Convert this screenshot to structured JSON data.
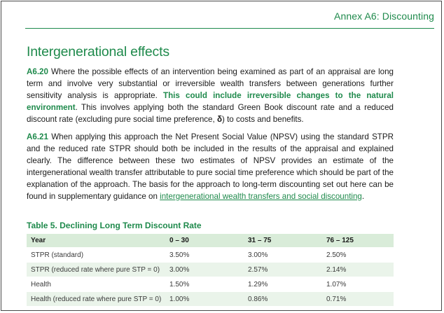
{
  "header": {
    "annex": "Annex A6: Discounting"
  },
  "section": {
    "title": "Intergenerational effects"
  },
  "paragraphs": [
    {
      "number": "A6.20",
      "text_before": " Where the possible effects of an intervention being examined as part of an appraisal are long term and involve very substantial or irreversible wealth transfers between generations further sensitivity analysis is appropriate. ",
      "highlight": "This could include irreversible changes to the natural environment",
      "text_after": ". This involves applying both the standard Green Book discount rate and a reduced discount rate (excluding pure social time preference, ",
      "symbol": "δ",
      "text_end": ") to costs and benefits."
    },
    {
      "number": "A6.21",
      "text_before": " When applying this approach the Net Present Social Value (NPSV) using the standard STPR and the reduced rate STPR should both be included in the results of the appraisal and explained clearly. The difference between these two estimates of NPSV provides an estimate of the intergenerational wealth transfer attributable to pure social time preference which should be part of the explanation of the approach. The basis for the approach to long-term discounting set out here can be found in supplementary guidance on ",
      "link": "intergenerational wealth transfers and social discounting",
      "text_end": "."
    }
  ],
  "table": {
    "title": "Table 5. Declining Long Term Discount Rate",
    "headers": [
      "Year",
      "0 – 30",
      "31 – 75",
      "76 – 125"
    ],
    "rows": [
      [
        "STPR (standard)",
        "3.50%",
        "3.00%",
        "2.50%"
      ],
      [
        "STPR (reduced rate where pure STP = 0)",
        "3.00%",
        "2.57%",
        "2.14%"
      ],
      [
        "Health",
        "1.50%",
        "1.29%",
        "1.07%"
      ],
      [
        "Health (reduced rate where pure STP = 0)",
        "1.00%",
        "0.86%",
        "0.71%"
      ]
    ]
  }
}
